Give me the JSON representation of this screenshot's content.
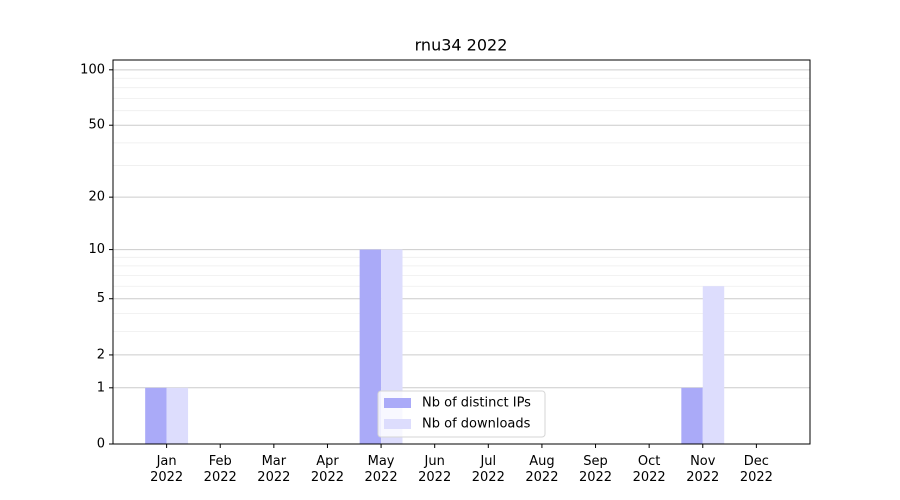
{
  "chart_data": {
    "type": "bar",
    "title": "rnu34 2022",
    "categories": [
      "Jan 2022",
      "Feb 2022",
      "Mar 2022",
      "Apr 2022",
      "May 2022",
      "Jun 2022",
      "Jul 2022",
      "Aug 2022",
      "Sep 2022",
      "Oct 2022",
      "Nov 2022",
      "Dec 2022"
    ],
    "series": [
      {
        "name": "Nb of distinct IPs",
        "color": "#aaaaf8",
        "values": [
          1,
          0,
          0,
          0,
          10,
          0,
          0,
          0,
          0,
          0,
          1,
          0
        ]
      },
      {
        "name": "Nb of downloads",
        "color": "#ddddfd",
        "values": [
          1,
          0,
          0,
          0,
          10,
          0,
          0,
          0,
          0,
          0,
          6,
          0
        ]
      }
    ],
    "yscale": "log1p",
    "ylim": [
      0,
      113
    ],
    "yticks": [
      0,
      1,
      2,
      5,
      10,
      20,
      50,
      100
    ],
    "minor_yticks": [
      3,
      4,
      6,
      7,
      8,
      9,
      30,
      40,
      60,
      70,
      80,
      90
    ],
    "grid": true,
    "legend": "lower center"
  }
}
